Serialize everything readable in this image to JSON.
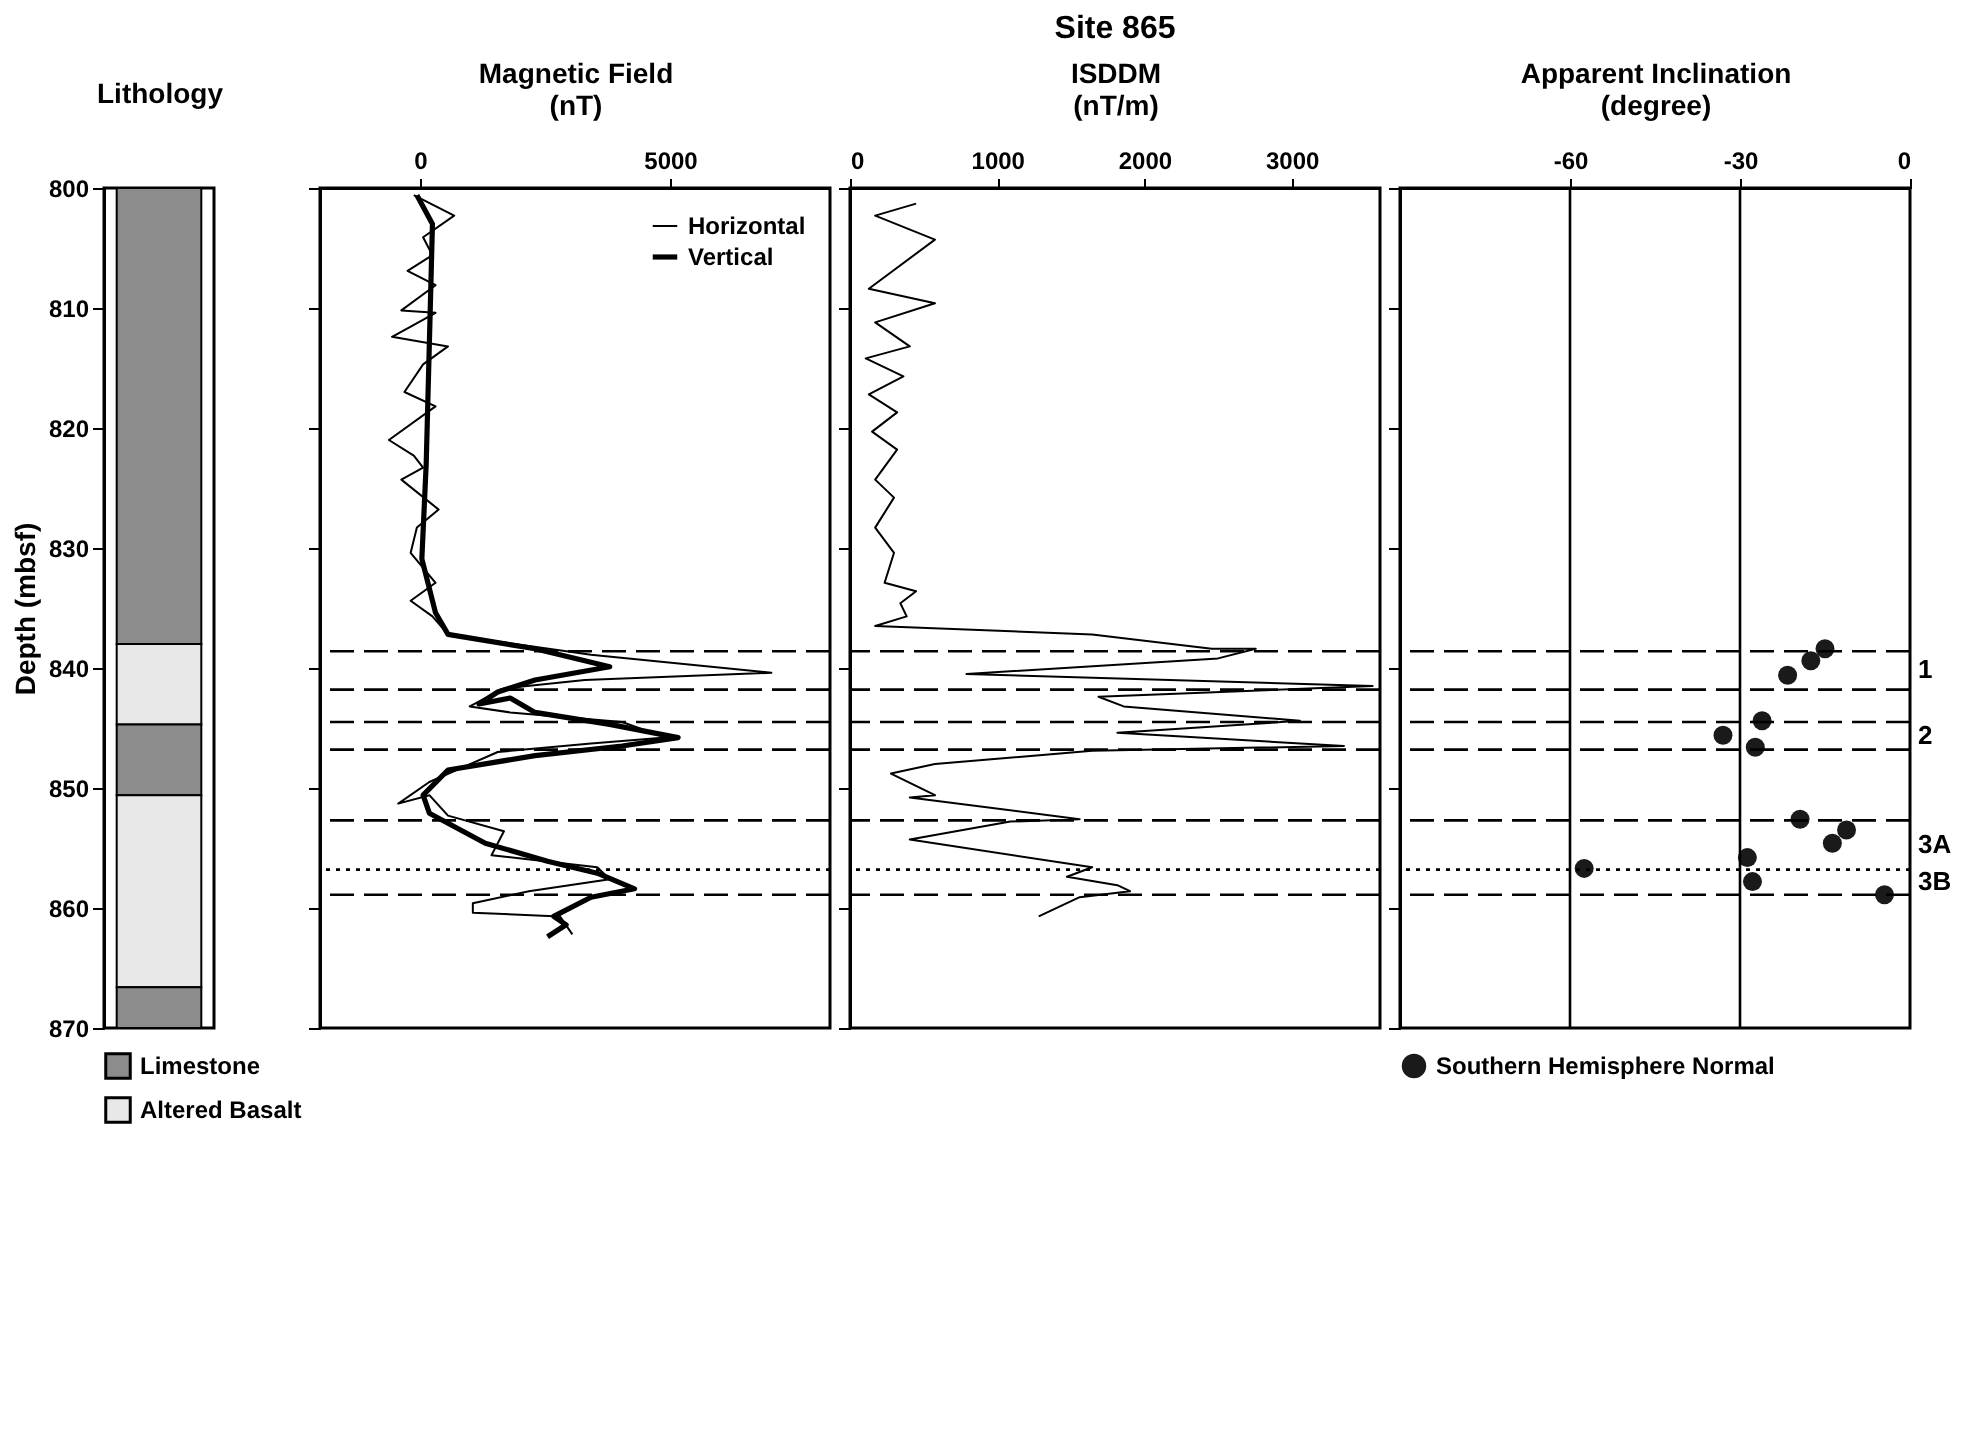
{
  "chart_data": [
    {
      "type": "bar",
      "xlabel": "Lithology",
      "ylabel": "Depth (mbsf)",
      "categories": [
        null
      ],
      "ylim": [
        870,
        800
      ],
      "yticks": [
        800,
        810,
        820,
        830,
        840,
        850,
        860,
        870
      ],
      "tick_labels": "y",
      "legend": "bottom",
      "series": [
        {
          "name": "Limestone",
          "color": "#8c8c8c",
          "values": [
            38
          ],
          "base": [
            800
          ]
        },
        {
          "name": "Altered Basalt",
          "color": "#e8e8e8",
          "values": [
            6.7
          ],
          "base": [
            838
          ]
        },
        {
          "color": "#8c8c8c",
          "values": [
            5.9
          ],
          "base": [
            844.7
          ]
        },
        {
          "color": "#e8e8e8",
          "values": [
            16
          ],
          "base": [
            850.6
          ]
        },
        {
          "color": "#8c8c8c",
          "values": [
            3.4
          ],
          "base": [
            866.6
          ]
        }
      ]
    },
    {
      "type": "line",
      "xlabel": "Magnetic Field\n(nT)",
      "xlim": [
        -2000,
        8200
      ],
      "xticks": [
        0,
        5000
      ],
      "ylim": [
        870,
        800
      ],
      "yticks": [
        800,
        810,
        820,
        830,
        840,
        850,
        860,
        870
      ],
      "tick_labels": "x",
      "legend": "top right",
      "series": [
        {
          "name": "Horizontal",
          "color": "#000000",
          "x": [
            -124,
            684,
            62,
            249,
            -249,
            311,
            -373,
            311,
            -249,
            -560,
            560,
            62,
            -311,
            311,
            -622,
            -124,
            62,
            -373,
            373,
            -62,
            -187,
            311,
            -187,
            249,
            560,
            3420,
            7027,
            3296,
            1679,
            995,
            1803,
            4042,
            4913,
            3420,
            1555,
            187,
            -435,
            187,
            560,
            1679,
            1430,
            3545,
            3794,
            2177,
            1057,
            1057,
            2799,
            3047
          ],
          "values": [
            800.6,
            802.3,
            804.1,
            805.6,
            806.9,
            808.1,
            810.2,
            810.4,
            811.7,
            812.4,
            813.2,
            814.7,
            817,
            818.2,
            821,
            822.3,
            823.3,
            824.3,
            826.8,
            828.3,
            830.4,
            832.9,
            834.4,
            835.7,
            837.2,
            838.9,
            840.4,
            841,
            841.7,
            843.2,
            843.7,
            844.5,
            845.8,
            846.3,
            847,
            849.5,
            851.3,
            850.6,
            852.3,
            853.6,
            855.6,
            856.6,
            857.6,
            858.6,
            859.6,
            860.4,
            860.7,
            862.2
          ]
        },
        {
          "name": "Vertical",
          "color": "#000000",
          "x": [
            -62,
            249,
            187,
            124,
            37,
            311,
            560,
            2301,
            3794,
            2301,
            1555,
            1181,
            1803,
            2301,
            3794,
            5162,
            4042,
            2301,
            560,
            62,
            187,
            1306,
            2550,
            3545,
            4291,
            3420,
            2674,
            2923,
            2550
          ],
          "values": [
            800.6,
            803,
            813,
            823,
            830.9,
            835.4,
            837.2,
            838.4,
            839.9,
            841,
            842,
            843,
            842.5,
            843.7,
            844.7,
            845.8,
            846.5,
            847.3,
            848.5,
            850.6,
            852.1,
            854.6,
            856.1,
            857.1,
            858.4,
            859.1,
            860.7,
            861.4,
            862.4
          ]
        }
      ],
      "ref_lines": [
        {
          "axis": "y",
          "value": 838.6,
          "line_style": "dashed"
        },
        {
          "axis": "y",
          "value": 841.8,
          "line_style": "dashed"
        },
        {
          "axis": "y",
          "value": 844.5,
          "line_style": "dashed"
        },
        {
          "axis": "y",
          "value": 846.8,
          "line_style": "dashed"
        },
        {
          "axis": "y",
          "value": 852.7,
          "line_style": "dashed"
        },
        {
          "axis": "y",
          "value": 856.8,
          "line_style": "dotted"
        },
        {
          "axis": "y",
          "value": 858.9,
          "line_style": "dashed"
        }
      ]
    },
    {
      "type": "line",
      "title": "Site 865",
      "xlabel": "ISDDM\n(nT/m)",
      "xlim": [
        0,
        3600
      ],
      "xticks": [
        0,
        1000,
        2000,
        3000
      ],
      "ylim": [
        870,
        800
      ],
      "yticks": [
        800,
        810,
        820,
        830,
        840,
        850,
        860,
        870
      ],
      "tick_labels": "x",
      "series": [
        {
          "color": "#000000",
          "x": [
            449,
            171,
            577,
            128,
            577,
            171,
            406,
            107,
            363,
            128,
            320,
            150,
            320,
            171,
            299,
            171,
            299,
            235,
            449,
            342,
            385,
            171,
            1645,
            2457,
            2756,
            2500,
            791,
            3550,
            1688,
            1859,
            3056,
            1816,
            3355,
            1645,
            577,
            278,
            577,
            406,
            1560,
            1090,
            406,
            1645,
            1474,
            1816,
            1902,
            1560,
            1282
          ],
          "values": [
            801.3,
            802.3,
            804.3,
            808.4,
            809.6,
            811.2,
            813.2,
            814.2,
            815.7,
            817.2,
            818.7,
            820.3,
            821.8,
            824.3,
            825.8,
            828.3,
            830.4,
            832.9,
            833.6,
            834.6,
            835.7,
            836.5,
            837.2,
            838.4,
            838.4,
            839.2,
            840.5,
            841.5,
            842.4,
            843.2,
            844.4,
            845.4,
            846.5,
            846.9,
            848,
            848.8,
            850.6,
            850.8,
            852.6,
            852.8,
            854.3,
            856.6,
            857.4,
            858.1,
            858.6,
            859.1,
            860.7
          ]
        }
      ],
      "ref_lines": [
        {
          "axis": "y",
          "value": 838.6,
          "line_style": "dashed"
        },
        {
          "axis": "y",
          "value": 841.8,
          "line_style": "dashed"
        },
        {
          "axis": "y",
          "value": 844.5,
          "line_style": "dashed"
        },
        {
          "axis": "y",
          "value": 846.8,
          "line_style": "dashed"
        },
        {
          "axis": "y",
          "value": 852.7,
          "line_style": "dashed"
        },
        {
          "axis": "y",
          "value": 856.8,
          "line_style": "dotted"
        },
        {
          "axis": "y",
          "value": 858.9,
          "line_style": "dashed"
        }
      ]
    },
    {
      "type": "scatter",
      "xlabel": "Apparent Inclination\n(degree)",
      "xlim": [
        -90,
        0
      ],
      "xticks": [
        -60,
        -30,
        0
      ],
      "ylim": [
        870,
        800
      ],
      "yticks": [
        800,
        810,
        820,
        830,
        840,
        850,
        860,
        870
      ],
      "tick_labels": "x",
      "legend": "bottom",
      "marker": "circle",
      "series": [
        {
          "name": "Southern Hemisphere Normal",
          "color": "#1a1a1a",
          "x": [
            -15.0,
            -17.5,
            -21.6,
            -26.1,
            -33.0,
            -27.3,
            -19.4,
            -11.2,
            -13.7,
            -28.7,
            -57.5,
            -27.8,
            -4.5
          ],
          "values": [
            838.4,
            839.4,
            840.6,
            844.4,
            845.6,
            846.6,
            852.6,
            853.5,
            854.6,
            855.8,
            856.7,
            857.8,
            858.9
          ]
        }
      ],
      "ref_lines": [
        {
          "axis": "x",
          "value": -60,
          "line_style": "solid"
        },
        {
          "axis": "x",
          "value": -30,
          "line_style": "solid"
        },
        {
          "axis": "y",
          "value": 838.6,
          "line_style": "dashed"
        },
        {
          "axis": "y",
          "value": 841.8,
          "line_style": "dashed"
        },
        {
          "axis": "y",
          "value": 844.5,
          "line_style": "dashed"
        },
        {
          "axis": "y",
          "value": 846.8,
          "line_style": "dashed"
        },
        {
          "axis": "y",
          "value": 852.7,
          "line_style": "dashed"
        },
        {
          "axis": "y",
          "value": 856.8,
          "line_style": "dotted"
        },
        {
          "axis": "y",
          "value": 858.9,
          "line_style": "dashed"
        }
      ],
      "annotations": [
        "1",
        "2",
        "3A",
        "3B"
      ]
    }
  ]
}
